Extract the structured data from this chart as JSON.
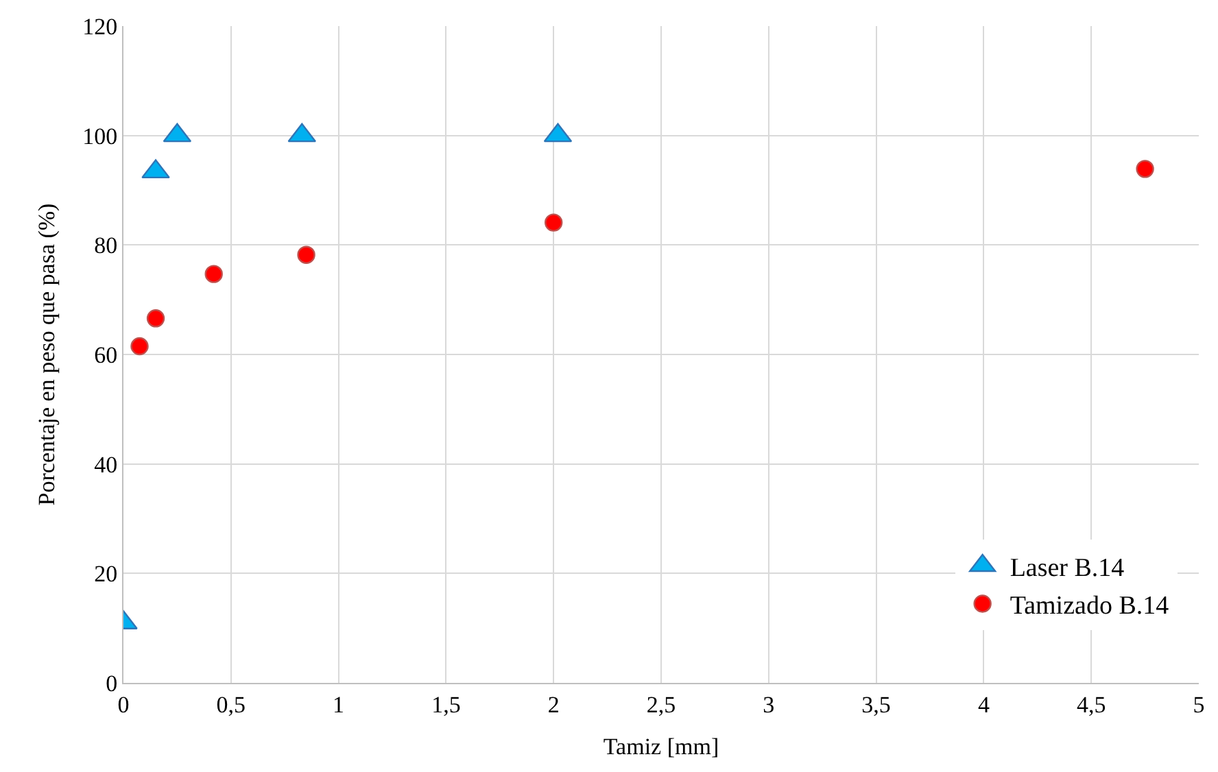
{
  "chart_data": {
    "type": "scatter",
    "xlabel": "Tamiz [mm]",
    "ylabel": "Porcentaje en peso que pasa (%)",
    "xlim": [
      0,
      5
    ],
    "xticks": [
      0,
      {
        "value": 0.5,
        "label": "0,5"
      },
      1,
      {
        "value": 1.5,
        "label": "1,5"
      },
      2,
      {
        "value": 2.5,
        "label": "2,5"
      },
      3,
      {
        "value": 3.5,
        "label": "3,5"
      },
      4,
      {
        "value": 4.5,
        "label": "4,5"
      },
      5
    ],
    "ylim": [
      0,
      120
    ],
    "yticks": [
      0,
      20,
      40,
      60,
      80,
      100,
      120
    ],
    "grid": true,
    "legend": "bottom right",
    "series": [
      {
        "name": "Laser B.14",
        "color": "#00b0f0",
        "marker": "triangle",
        "x": [
          0.0,
          0.15,
          0.25,
          0.83,
          2.02
        ],
        "values": [
          11,
          93.4,
          100,
          100,
          100
        ]
      },
      {
        "name": "Tamizado B.14",
        "color": "#ff0000",
        "marker": "circle",
        "x": [
          0.075,
          0.15,
          0.42,
          0.85,
          2.0,
          4.75
        ],
        "values": [
          61.5,
          66.6,
          74.7,
          78.2,
          84.1,
          93.9
        ]
      }
    ]
  }
}
